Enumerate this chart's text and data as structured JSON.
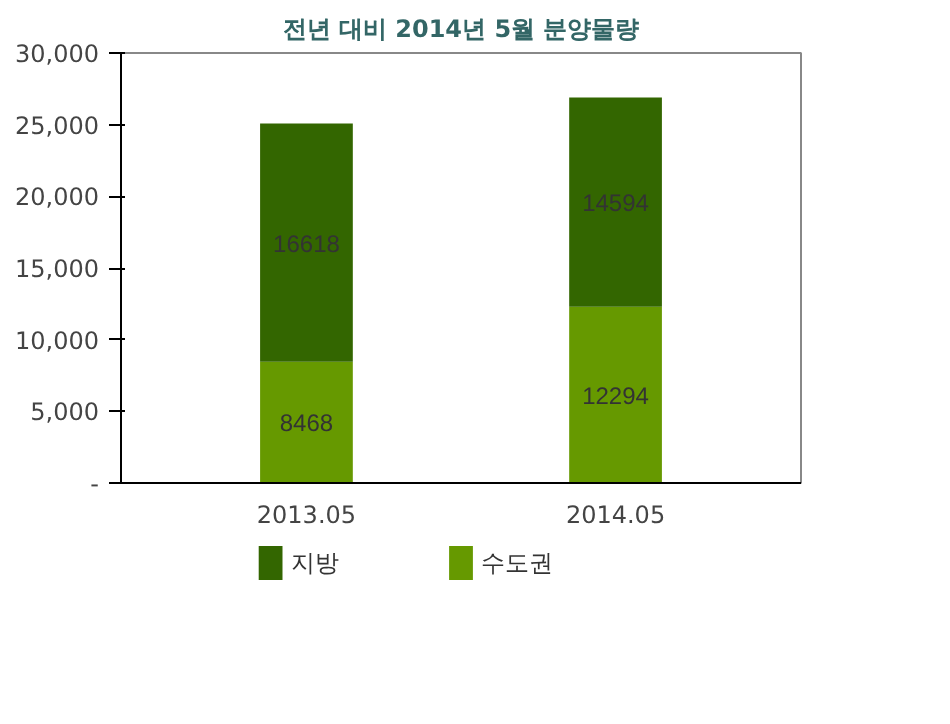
{
  "chart_data": {
    "type": "bar",
    "title": "전년 대비 2014년 5월 분양물량",
    "categories": [
      "2013.05",
      "2014.05"
    ],
    "stacked": true,
    "series": [
      {
        "name": "수도권",
        "color": "#669900",
        "values": [
          8468,
          12294
        ]
      },
      {
        "name": "지방",
        "color": "#336600",
        "values": [
          16618,
          14594
        ]
      }
    ],
    "ylim": [
      0,
      30000
    ],
    "yticks": [
      {
        "value": 0,
        "label": "-"
      },
      {
        "value": 5000,
        "label": "5,000"
      },
      {
        "value": 10000,
        "label": "10,000"
      },
      {
        "value": 15000,
        "label": "15,000"
      },
      {
        "value": 20000,
        "label": "20,000"
      },
      {
        "value": 25000,
        "label": "25,000"
      },
      {
        "value": 30000,
        "label": "30,000"
      }
    ],
    "data_labels": true,
    "grid": false,
    "legend": "bottom"
  }
}
